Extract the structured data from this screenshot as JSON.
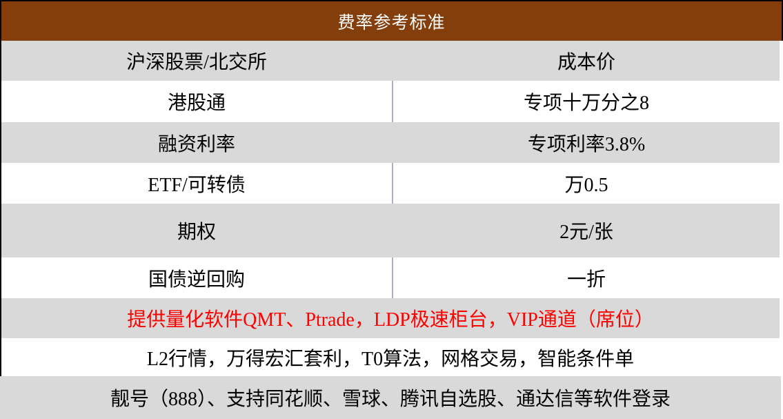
{
  "table": {
    "title": "费率参考标准",
    "rows": [
      {
        "label": "沪深股票/北交所",
        "value": "成本价"
      },
      {
        "label": "港股通",
        "value": "专项十万分之8"
      },
      {
        "label": "融资利率",
        "value": "专项利率3.8%"
      },
      {
        "label": "ETF/可转债",
        "value": "万0.5"
      },
      {
        "label": "期权",
        "value": "2元/张"
      },
      {
        "label": "国债逆回购",
        "value": "一折"
      }
    ],
    "notes": [
      "提供量化软件QMT、Ptrade，LDP极速柜台，VIP通道（席位）",
      "L2行情，万得宏汇套利，T0算法，网格交易，智能条件单",
      "靓号（888）、支持同花顺、雪球、腾讯自选股、通达信等软件登录"
    ],
    "colors": {
      "header_bg": "#843E0C",
      "header_text": "#FFFFFF",
      "row_alt_bg": "#D9D9D9",
      "row_bg": "#FFFFFF",
      "note_highlight_text": "#FF0000",
      "column_divider": "#A9B0C4",
      "outer_border": "#000000",
      "body_text": "#000000"
    }
  }
}
